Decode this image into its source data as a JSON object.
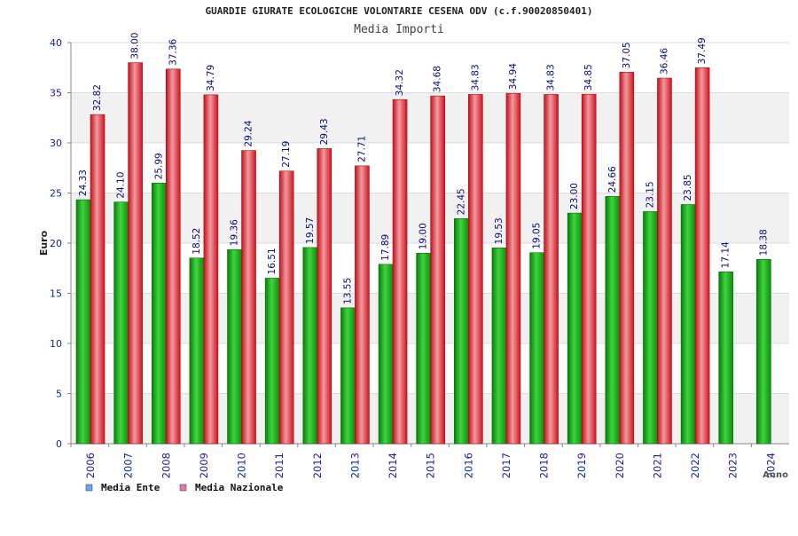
{
  "chart_data": {
    "type": "bar",
    "title": "GUARDIE GIURATE ECOLOGICHE VOLONTARIE CESENA ODV (c.f.90020850401)",
    "subtitle": "Media Importi",
    "xlabel": "Anno",
    "ylabel": "Euro",
    "ylim": [
      0,
      40
    ],
    "yticks": [
      0,
      5,
      10,
      15,
      20,
      25,
      30,
      35,
      40
    ],
    "grid": true,
    "legend_position": "bottom-left",
    "categories": [
      "2006",
      "2007",
      "2008",
      "2009",
      "2010",
      "2011",
      "2012",
      "2013",
      "2014",
      "2015",
      "2016",
      "2017",
      "2018",
      "2019",
      "2020",
      "2021",
      "2022",
      "2023",
      "2024"
    ],
    "series": [
      {
        "name": "Media Ente",
        "legend_color": "#6aa6e8",
        "bar_color": "#1fae1f",
        "values": [
          24.33,
          24.1,
          25.99,
          18.52,
          19.36,
          16.51,
          19.57,
          13.55,
          17.89,
          19.0,
          22.45,
          19.53,
          19.05,
          23.0,
          24.66,
          23.15,
          23.85,
          17.14,
          18.38
        ],
        "labels": [
          "24.33",
          "24.10",
          "25.99",
          "18.52",
          "19.36",
          "16.51",
          "19.57",
          "13.55",
          "17.89",
          "19.00",
          "22.45",
          "19.53",
          "19.05",
          "23.00",
          "24.66",
          "23.15",
          "23.85",
          "17.14",
          "18.38"
        ]
      },
      {
        "name": "Media Nazionale",
        "legend_color": "#e07aa8",
        "bar_color": "#e0202a",
        "values": [
          32.82,
          38.0,
          37.36,
          34.79,
          29.24,
          27.19,
          29.43,
          27.71,
          34.32,
          34.68,
          34.83,
          34.94,
          34.83,
          34.85,
          37.05,
          36.46,
          37.49,
          null,
          null
        ],
        "labels": [
          "32.82",
          "38.00",
          "37.36",
          "34.79",
          "29.24",
          "27.19",
          "29.43",
          "27.71",
          "34.32",
          "34.68",
          "34.83",
          "34.94",
          "34.83",
          "34.85",
          "37.05",
          "36.46",
          "37.49",
          "",
          ""
        ]
      }
    ]
  }
}
